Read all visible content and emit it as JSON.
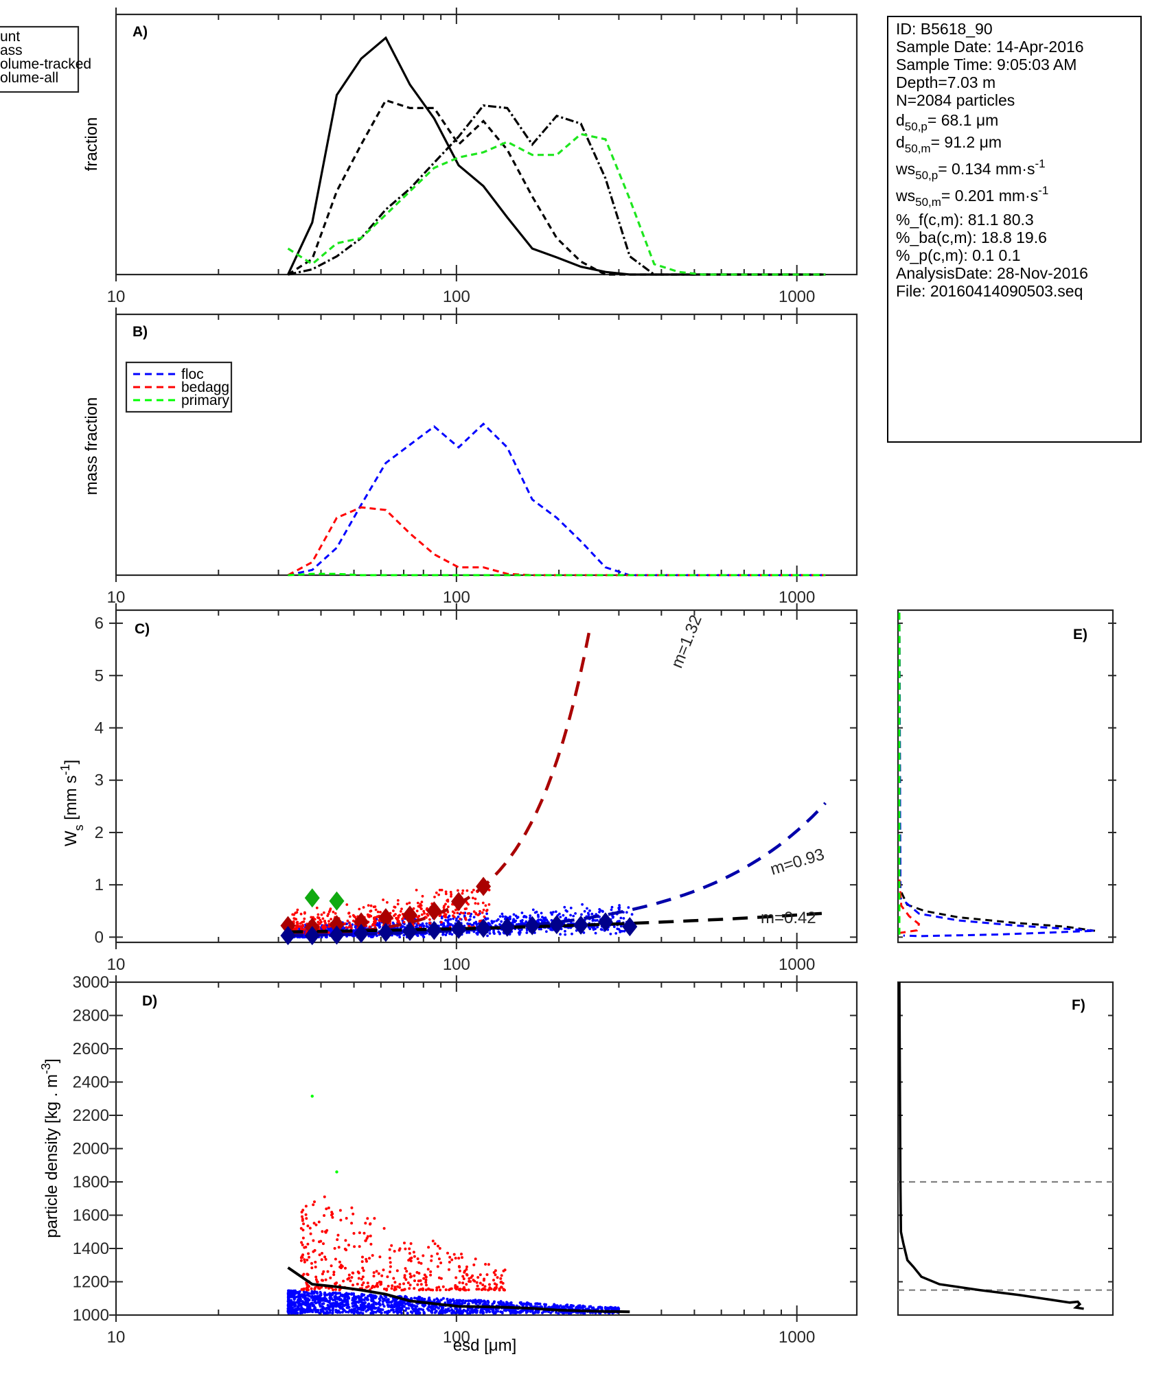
{
  "info_box": {
    "id": "ID: B5618_90",
    "sample_date": "Sample Date: 14-Apr-2016",
    "sample_time": "Sample Time:  9:05:03 AM",
    "depth": "Depth=7.03 m",
    "n": "N=2084 particles",
    "d50p": {
      "base": "d",
      "sub": "50,p",
      "rest": "=  68.1 μm"
    },
    "d50m": {
      "base": "d",
      "sub": "50,m",
      "rest": "=  91.2 μm"
    },
    "ws50p": {
      "base": "ws",
      "sub": "50,p",
      "rest": "= 0.134 mm·s",
      "sup": "-1"
    },
    "ws50m": {
      "base": "ws",
      "sub": "50,m",
      "rest": "= 0.201 mm·s",
      "sup": "-1"
    },
    "pf": "%_f(c,m): 81.1 80.3",
    "pba": "%_ba(c,m): 18.8 19.6",
    "pp": "%_p(c,m): 0.1 0.1",
    "analysis_date": "AnalysisDate: 28-Nov-2016",
    "file": "File: 20160414090503.seq"
  },
  "chart_data": [
    {
      "panel": "A)",
      "type": "line",
      "xscale": "log",
      "xlim": [
        10,
        1500
      ],
      "xticks": [
        10,
        100,
        1000
      ],
      "xtick_labels": [
        "10",
        "100",
        "1000"
      ],
      "ylabel": "fraction",
      "ylim": [
        0,
        1
      ],
      "yticks": [],
      "x": [
        32,
        37.7,
        44.5,
        52.5,
        62,
        73,
        86,
        101.5,
        120,
        141,
        167,
        197,
        232,
        274,
        323,
        381,
        450,
        530,
        626,
        738,
        871,
        1028,
        1213
      ],
      "series": [
        {
          "name": "count",
          "legend_text": "unt",
          "color": "#000000",
          "style": "solid",
          "values": [
            0,
            0.2,
            0.69,
            0.83,
            0.91,
            0.73,
            0.6,
            0.42,
            0.34,
            0.22,
            0.1,
            0.066,
            0.03,
            0.01,
            0,
            0,
            0,
            0,
            0,
            0,
            0,
            0,
            0
          ]
        },
        {
          "name": "mass",
          "legend_text": "ass",
          "color": "#000000",
          "style": "dashed",
          "values": [
            0,
            0.06,
            0.32,
            0.5,
            0.67,
            0.64,
            0.64,
            0.5,
            0.59,
            0.48,
            0.3,
            0.14,
            0.05,
            0,
            0,
            0,
            0,
            0,
            0,
            0,
            0,
            0,
            0
          ]
        },
        {
          "name": "volume-tracked",
          "legend_text": "olume-tracked",
          "color": "#000000",
          "style": "dashdot",
          "values": [
            0,
            0.02,
            0.07,
            0.14,
            0.25,
            0.33,
            0.43,
            0.53,
            0.65,
            0.64,
            0.5,
            0.61,
            0.58,
            0.37,
            0.07,
            0,
            0,
            0,
            0,
            0,
            0,
            0,
            0
          ]
        },
        {
          "name": "volume-all",
          "legend_text": "olume-all",
          "color": "#1ee61e",
          "style": "dashed",
          "values": [
            0.1,
            0.04,
            0.12,
            0.14,
            0.23,
            0.32,
            0.41,
            0.45,
            0.47,
            0.51,
            0.46,
            0.46,
            0.54,
            0.52,
            0.29,
            0.04,
            0.01,
            0,
            0,
            0,
            0,
            0,
            0
          ]
        }
      ],
      "legend": "outside-top-left"
    },
    {
      "panel": "B)",
      "type": "line",
      "xscale": "log",
      "xlim": [
        10,
        1500
      ],
      "xticks": [
        10,
        100,
        1000
      ],
      "xtick_labels": [
        "10",
        "100",
        "1000"
      ],
      "ylabel": "mass fraction",
      "ylim": [
        0,
        1
      ],
      "yticks": [],
      "x": [
        32,
        37.7,
        44.5,
        52.5,
        62,
        73,
        86,
        101.5,
        120,
        141,
        167,
        197,
        232,
        274,
        323,
        381,
        450,
        530,
        626,
        738,
        871,
        1028,
        1213
      ],
      "series": [
        {
          "name": "floc",
          "color": "#0000ff",
          "style": "dashed",
          "values": [
            0,
            0.02,
            0.105,
            0.27,
            0.43,
            0.5,
            0.57,
            0.49,
            0.58,
            0.49,
            0.29,
            0.22,
            0.13,
            0.03,
            0,
            0,
            0,
            0,
            0,
            0,
            0,
            0,
            0
          ]
        },
        {
          "name": "bedagg",
          "color": "#ff0000",
          "style": "dashed",
          "values": [
            0,
            0.05,
            0.22,
            0.26,
            0.25,
            0.16,
            0.08,
            0.03,
            0.03,
            0.005,
            0,
            0,
            0,
            0,
            0,
            0,
            0,
            0,
            0,
            0,
            0,
            0,
            0
          ]
        },
        {
          "name": "primary",
          "color": "#00ff00",
          "style": "dashed",
          "values": [
            0,
            0.005,
            0.005,
            0,
            0,
            0,
            0,
            0,
            0,
            0,
            0,
            0,
            0,
            0,
            0,
            0,
            0,
            0,
            0,
            0,
            0,
            0,
            0
          ]
        }
      ],
      "legend": "top-left"
    },
    {
      "panel": "C)",
      "type": "scatter",
      "xscale": "log",
      "xlim": [
        10,
        1500
      ],
      "xticks": [
        10,
        100,
        1000
      ],
      "xtick_labels": [
        "10",
        "100",
        "1000"
      ],
      "ylabel": "W",
      "ylabel_sub": "s",
      "ylabel_rest": " [mm s",
      "ylabel_sup": "-1",
      "ylabel_end": "]",
      "ylim": [
        -0.1,
        6.25
      ],
      "yticks": [
        0,
        1,
        2,
        3,
        4,
        5,
        6
      ],
      "ytick_labels": [
        "0",
        "1",
        "2",
        "3",
        "4",
        "5",
        "6"
      ],
      "scatter_clouds": [
        {
          "name": "floc-particles",
          "color": "#0000ff",
          "xrange": [
            32,
            330
          ],
          "yrange": [
            0.0,
            0.65
          ],
          "count": 1300
        },
        {
          "name": "bedagg-particles",
          "color": "#ff0000",
          "xrange": [
            33,
            125
          ],
          "yrange": [
            0.05,
            0.9
          ],
          "count": 420
        }
      ],
      "bin_means": [
        {
          "name": "bedagg-means",
          "color": "#aa0000",
          "x": [
            32,
            37.7,
            44.5,
            52.5,
            62,
            73,
            86,
            101.5,
            120
          ],
          "y": [
            0.22,
            0.19,
            0.24,
            0.29,
            0.37,
            0.42,
            0.5,
            0.68,
            0.97
          ]
        },
        {
          "name": "floc-means",
          "color": "#00008b",
          "x": [
            32,
            37.7,
            44.5,
            52.5,
            62,
            73,
            86,
            101.5,
            120,
            141,
            167,
            197,
            232,
            274,
            323
          ],
          "y": [
            0.03,
            0.03,
            0.04,
            0.07,
            0.09,
            0.11,
            0.13,
            0.15,
            0.17,
            0.19,
            0.22,
            0.24,
            0.23,
            0.29,
            0.2
          ]
        },
        {
          "name": "primary-means",
          "color": "#10aa10",
          "x": [
            37.7,
            44.5
          ],
          "y": [
            0.75,
            0.69
          ]
        }
      ],
      "fits": [
        {
          "name": "bedagg-fit",
          "label": "m=1.32",
          "color": "#aa0000",
          "a": 0.97,
          "x0": 120,
          "m": 1.32,
          "xrange": [
            32,
            560
          ]
        },
        {
          "name": "floc-fit",
          "label": "m=0.93",
          "color": "#0000aa",
          "a": 0.19,
          "x0": 141,
          "m": 0.93,
          "xrange": [
            32,
            1213
          ]
        },
        {
          "name": "all-fit",
          "label": "m=0.42",
          "color": "#000000",
          "a": 0.12,
          "x0": 50,
          "m": 0.42,
          "xrange": [
            32,
            1213
          ]
        }
      ]
    },
    {
      "panel": "D)",
      "type": "scatter",
      "xscale": "log",
      "xlim": [
        10,
        1500
      ],
      "xticks": [
        10,
        100,
        1000
      ],
      "xtick_labels": [
        "10",
        "100",
        "1000"
      ],
      "xlabel": "esd [μm]",
      "ylabel": "particle density [kg . m",
      "ylabel_sup": "-3",
      "ylabel_end": "]",
      "ylim": [
        1000,
        3000
      ],
      "yticks": [
        1000,
        1200,
        1400,
        1600,
        1800,
        2000,
        2200,
        2400,
        2600,
        2800,
        3000
      ],
      "ytick_labels": [
        "1000",
        "1200",
        "1400",
        "1600",
        "1800",
        "2000",
        "2200",
        "2400",
        "2600",
        "2800",
        "3000"
      ],
      "scatter_clouds": [
        {
          "name": "floc-particles",
          "color": "#0000ff",
          "xrange": [
            32,
            300
          ],
          "yrange": [
            1010,
            1150
          ],
          "count": 1500
        },
        {
          "name": "bedagg-particles",
          "color": "#ff0000",
          "xrange": [
            35,
            140
          ],
          "yrange": [
            1150,
            1770
          ],
          "count": 420
        }
      ],
      "points": [
        {
          "name": "primary-particle",
          "color": "#00ff00",
          "x": 37.7,
          "y": 2315
        },
        {
          "name": "primary-particle",
          "color": "#00ff00",
          "x": 44.5,
          "y": 1860
        }
      ],
      "mean_line": {
        "name": "mean-density",
        "color": "#000000",
        "x": [
          32,
          37.7,
          44.5,
          52.5,
          62,
          73,
          86,
          101.5,
          120,
          141,
          167,
          197,
          232,
          274,
          323
        ],
        "y": [
          1285,
          1185,
          1170,
          1150,
          1125,
          1085,
          1068,
          1052,
          1050,
          1046,
          1040,
          1030,
          1025,
          1022,
          1020
        ]
      }
    },
    {
      "panel": "E)",
      "type": "line",
      "orientation": "horizontal-distribution",
      "ylim": [
        -0.1,
        6.25
      ],
      "yticks": [
        0,
        1,
        2,
        3,
        4,
        5,
        6
      ],
      "xlim": [
        0,
        1
      ],
      "series": [
        {
          "name": "all",
          "color": "#000000",
          "x": [
            0,
            0.005,
            0.04,
            0.13,
            0.3,
            0.6,
            0.85,
            1.0
          ],
          "y": [
            6.2,
            0.9,
            0.62,
            0.5,
            0.38,
            0.27,
            0.2,
            0.12
          ]
        },
        {
          "name": "floc",
          "color": "#0000ff",
          "x": [
            0,
            0.005,
            0.1,
            0.3,
            0.6,
            0.85,
            1.0,
            0.5,
            0.1,
            0.02
          ],
          "y": [
            6.2,
            0.75,
            0.45,
            0.32,
            0.22,
            0.16,
            0.12,
            0.05,
            0.02,
            0.03
          ]
        },
        {
          "name": "bedagg",
          "color": "#ff0000",
          "x": [
            0,
            0.01,
            0.05,
            0.1,
            0.09,
            0.0
          ],
          "y": [
            1.1,
            0.6,
            0.4,
            0.25,
            0.13,
            0.08
          ]
        },
        {
          "name": "primary",
          "color": "#00ff00",
          "x": [
            0,
            0,
            0
          ],
          "y": [
            6.2,
            0.8,
            0.0
          ]
        }
      ]
    },
    {
      "panel": "F)",
      "type": "line",
      "orientation": "horizontal-distribution",
      "ylim": [
        1000,
        3000
      ],
      "xlim": [
        0,
        1
      ],
      "reference_lines": [
        1800,
        1150
      ],
      "series": [
        {
          "name": "density-distribution",
          "color": "#000000",
          "x": [
            0,
            0.002,
            0.005,
            0.008,
            0.02,
            0.04,
            0.07,
            0.11,
            0.2,
            0.4,
            0.6,
            0.85,
            0.89,
            0.9,
            0.88,
            0.92
          ],
          "y": [
            3000,
            2500,
            1800,
            1500,
            1430,
            1330,
            1290,
            1230,
            1185,
            1150,
            1120,
            1075,
            1080,
            1065,
            1045,
            1038
          ]
        }
      ]
    }
  ]
}
